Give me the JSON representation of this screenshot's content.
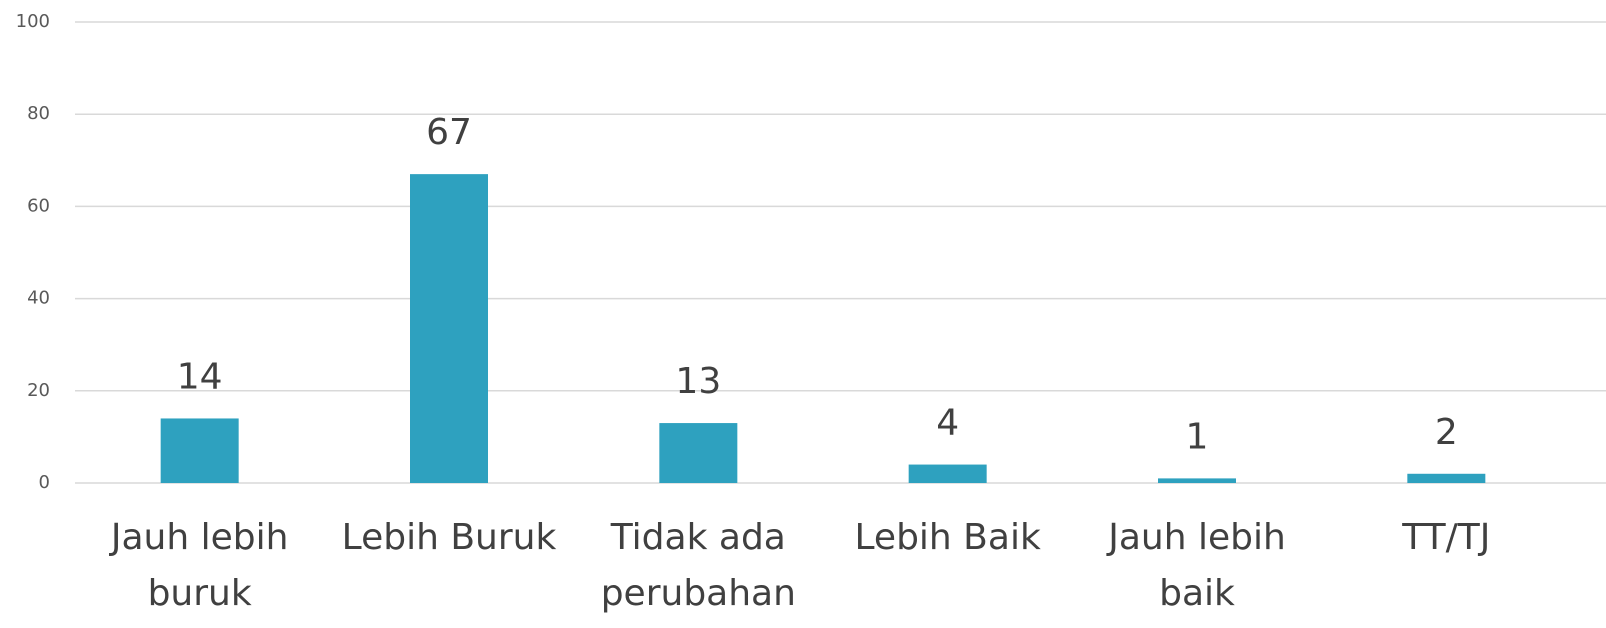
{
  "chart_data": {
    "type": "bar",
    "categories": [
      "Jauh lebih buruk",
      "Lebih Buruk",
      "Tidak ada perubahan",
      "Lebih Baik",
      "Jauh lebih baik",
      "TT/TJ"
    ],
    "values": [
      14,
      67,
      13,
      4,
      1,
      2
    ],
    "color": "#2ea1bf",
    "ylim": [
      0,
      100
    ],
    "yticks": [
      0,
      20,
      40,
      60,
      80,
      100
    ],
    "grid": true
  }
}
